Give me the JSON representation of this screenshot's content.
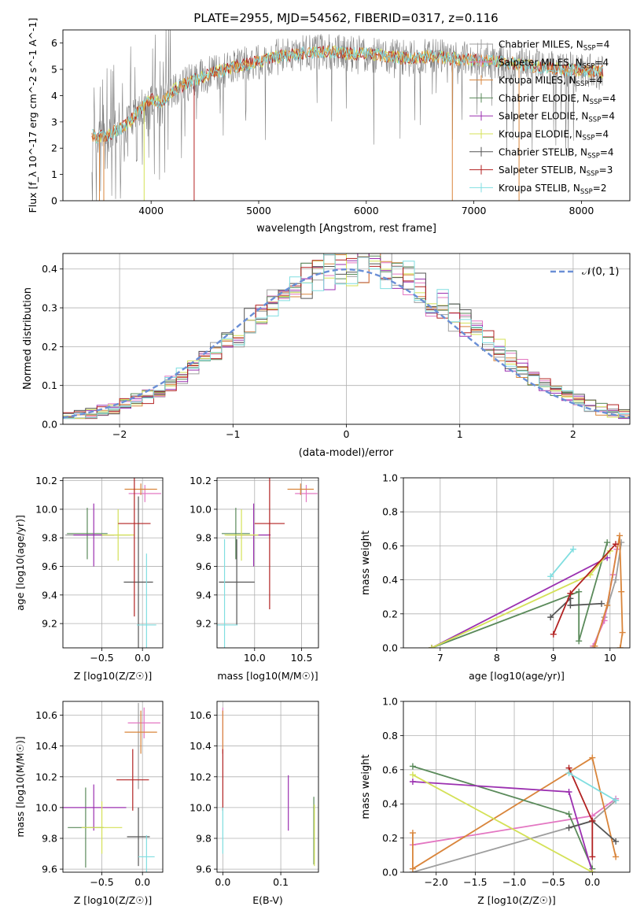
{
  "figure": {
    "title": "PLATE=2955, MJD=54562, FIBERID=0317, z=0.116"
  },
  "colors": {
    "Chabrier MILES": "#9e9e9e",
    "Salpeter MILES": "#e377c2",
    "Kroupa MILES": "#d9853b",
    "Chabrier ELODIE": "#5a8a5a",
    "Salpeter ELODIE": "#9b30b0",
    "Kroupa ELODIE": "#d4e157",
    "Chabrier STELIB": "#555555",
    "Salpeter STELIB": "#b22222",
    "Kroupa STELIB": "#80dee0",
    "normal": "#6a8fd6"
  },
  "chart_data": [
    {
      "id": "spectrum",
      "type": "line",
      "xlabel": "wavelength [Angstrom, rest frame]",
      "ylabel": "Flux [f_λ 10^-17 erg cm^-2 s^-1 A^-1]",
      "xlim": [
        3180,
        8450
      ],
      "ylim": [
        0,
        6.5
      ],
      "xticks": [
        4000,
        5000,
        6000,
        7000,
        8000
      ],
      "yticks": [
        0,
        1,
        2,
        3,
        4,
        5,
        6
      ],
      "legend_position": "upper-right",
      "data_trend": {
        "x": [
          3450,
          3500,
          3600,
          3700,
          3800,
          3900,
          4000,
          4100,
          4200,
          4400,
          4600,
          4800,
          5000,
          5200,
          5400,
          5600,
          5800,
          6000,
          6200,
          6400,
          6600,
          6800,
          7000,
          7200,
          7400,
          7600,
          7800,
          8000,
          8200
        ],
        "y": [
          2.5,
          2.4,
          2.5,
          2.7,
          3.0,
          3.5,
          3.9,
          3.7,
          4.2,
          4.6,
          4.9,
          5.1,
          5.3,
          5.5,
          5.6,
          5.7,
          5.6,
          5.6,
          5.5,
          5.4,
          5.5,
          5.4,
          5.35,
          5.3,
          5.2,
          5.1,
          5.0,
          4.95,
          4.9
        ]
      },
      "series": [
        {
          "name": "Chabrier MILES",
          "label": "Chabrier MILES, N",
          "sub": "SSP",
          "tail": "=4"
        },
        {
          "name": "Salpeter MILES",
          "label": "Salpeter MILES, N",
          "sub": "SSP",
          "tail": "=4"
        },
        {
          "name": "Kroupa MILES",
          "label": "Kroupa MILES, N",
          "sub": "SSP",
          "tail": "=4"
        },
        {
          "name": "Chabrier ELODIE",
          "label": "Chabrier ELODIE, N",
          "sub": "SSP",
          "tail": "=4"
        },
        {
          "name": "Salpeter ELODIE",
          "label": "Salpeter ELODIE, N",
          "sub": "SSP",
          "tail": "=4"
        },
        {
          "name": "Kroupa ELODIE",
          "label": "Kroupa ELODIE, N",
          "sub": "SSP",
          "tail": "=4"
        },
        {
          "name": "Chabrier STELIB",
          "label": "Chabrier STELIB, N",
          "sub": "SSP",
          "tail": "=4"
        },
        {
          "name": "Salpeter STELIB",
          "label": "Salpeter STELIB, N",
          "sub": "SSP",
          "tail": "=3"
        },
        {
          "name": "Kroupa STELIB",
          "label": "Kroupa STELIB, N",
          "sub": "SSP",
          "tail": "=2"
        }
      ]
    },
    {
      "id": "residuals",
      "type": "line",
      "xlabel": "(data-model)/error",
      "ylabel": "Normed distribution",
      "xlim": [
        -2.5,
        2.5
      ],
      "ylim": [
        0,
        0.44
      ],
      "xticks": [
        -2,
        -1,
        0,
        1,
        2
      ],
      "yticks": [
        0.0,
        0.1,
        0.2,
        0.3,
        0.4
      ],
      "legend_position": "upper-right",
      "legend": "𝒩(0, 1)",
      "curve": "normal(0,1)",
      "bin_width": 0.1,
      "histograms_approx": "9 step histograms scattered around N(0,1), slightly shifted to positive values"
    },
    {
      "id": "age_vs_Z",
      "type": "scatter",
      "xlabel": "Z [log10(Z/Z☉)]",
      "ylabel": "age  [log10(age/yr)]",
      "xlim": [
        -0.98,
        0.25
      ],
      "ylim": [
        9.03,
        10.22
      ],
      "xticks": [
        -0.5,
        0.0
      ],
      "yticks": [
        9.2,
        9.4,
        9.6,
        9.8,
        10.0,
        10.2
      ],
      "points": [
        {
          "series": "Chabrier MILES",
          "x": -0.55,
          "y": 9.82,
          "xerr": 0.4,
          "yerr": 0.0
        },
        {
          "series": "Salpeter MILES",
          "x": 0.03,
          "y": 10.11,
          "xerr": 0.2,
          "yerr": 0.06
        },
        {
          "series": "Kroupa MILES",
          "x": -0.02,
          "y": 10.14,
          "xerr": 0.2,
          "yerr": 0.04
        },
        {
          "series": "Chabrier ELODIE",
          "x": -0.68,
          "y": 9.83,
          "xerr": 0.25,
          "yerr": 0.18
        },
        {
          "series": "Salpeter ELODIE",
          "x": -0.6,
          "y": 9.82,
          "xerr": 0.25,
          "yerr": 0.22
        },
        {
          "series": "Kroupa ELODIE",
          "x": -0.3,
          "y": 9.82,
          "xerr": 0.2,
          "yerr": 0.18
        },
        {
          "series": "Chabrier STELIB",
          "x": -0.05,
          "y": 9.49,
          "xerr": 0.18,
          "yerr": 0.6
        },
        {
          "series": "Salpeter STELIB",
          "x": -0.1,
          "y": 9.9,
          "xerr": 0.2,
          "yerr": 0.65
        },
        {
          "series": "Kroupa STELIB",
          "x": 0.05,
          "y": 9.19,
          "xerr": 0.12,
          "yerr": 0.5
        }
      ]
    },
    {
      "id": "age_vs_mass",
      "type": "scatter",
      "xlabel": "mass [log10(M/M☉)]",
      "ylabel": "",
      "xlim": [
        9.6,
        10.68
      ],
      "ylim": [
        9.03,
        10.22
      ],
      "xticks": [
        10.0,
        10.5
      ],
      "yticks": [
        9.2,
        9.4,
        9.6,
        9.8,
        10.0,
        10.2
      ],
      "points": [
        {
          "series": "Chabrier MILES",
          "x": 9.92,
          "y": 9.82,
          "xerr": 0.22,
          "yerr": 0.0
        },
        {
          "series": "Salpeter MILES",
          "x": 10.55,
          "y": 10.11,
          "xerr": 0.12,
          "yerr": 0.06
        },
        {
          "series": "Kroupa MILES",
          "x": 10.49,
          "y": 10.14,
          "xerr": 0.14,
          "yerr": 0.04
        },
        {
          "series": "Chabrier ELODIE",
          "x": 9.8,
          "y": 9.83,
          "xerr": 0.15,
          "yerr": 0.18
        },
        {
          "series": "Salpeter ELODIE",
          "x": 9.99,
          "y": 9.82,
          "xerr": 0.18,
          "yerr": 0.22
        },
        {
          "series": "Kroupa ELODIE",
          "x": 9.86,
          "y": 9.82,
          "xerr": 0.18,
          "yerr": 0.18
        },
        {
          "series": "Chabrier STELIB",
          "x": 9.81,
          "y": 9.49,
          "xerr": 0.19,
          "yerr": 0.3
        },
        {
          "series": "Salpeter STELIB",
          "x": 10.16,
          "y": 9.9,
          "xerr": 0.16,
          "yerr": 0.6
        },
        {
          "series": "Kroupa STELIB",
          "x": 9.68,
          "y": 9.19,
          "xerr": 0.14,
          "yerr": 0.6
        }
      ]
    },
    {
      "id": "mass_weight_vs_age",
      "type": "line",
      "xlabel": "age  [log10(age/yr)]",
      "ylabel": "mass weight",
      "xlim": [
        6.35,
        10.35
      ],
      "ylim": [
        0,
        1.0
      ],
      "xticks": [
        7,
        8,
        9,
        10
      ],
      "yticks": [
        0.0,
        0.2,
        0.4,
        0.6,
        0.8,
        1.0
      ],
      "series": [
        {
          "name": "Chabrier MILES",
          "x": [
            9.7,
            9.9,
            10.1,
            10.2
          ],
          "y": [
            0.0,
            0.18,
            0.4,
            0.62
          ]
        },
        {
          "name": "Salpeter MILES",
          "x": [
            9.7,
            9.9,
            10.05,
            10.12
          ],
          "y": [
            0.01,
            0.16,
            0.43,
            0.58
          ]
        },
        {
          "name": "Kroupa MILES",
          "x": [
            9.73,
            9.95,
            10.17,
            10.2,
            10.22,
            10.18
          ],
          "y": [
            0.01,
            0.25,
            0.66,
            0.33,
            0.09,
            0.0
          ]
        },
        {
          "name": "Chabrier ELODIE",
          "x": [
            6.85,
            9.45,
            9.45,
            9.95
          ],
          "y": [
            0.0,
            0.33,
            0.04,
            0.62
          ]
        },
        {
          "name": "Salpeter ELODIE",
          "x": [
            6.85,
            9.95
          ],
          "y": [
            0.0,
            0.53
          ]
        },
        {
          "name": "Kroupa ELODIE",
          "x": [
            6.85,
            9.65,
            10.0
          ],
          "y": [
            0.0,
            0.43,
            0.57
          ]
        },
        {
          "name": "Chabrier STELIB",
          "x": [
            8.95,
            9.3,
            9.3,
            9.85
          ],
          "y": [
            0.18,
            0.29,
            0.25,
            0.26
          ]
        },
        {
          "name": "Salpeter STELIB",
          "x": [
            9.0,
            9.3,
            10.1
          ],
          "y": [
            0.08,
            0.32,
            0.61
          ]
        },
        {
          "name": "Kroupa STELIB",
          "x": [
            8.95,
            9.35
          ],
          "y": [
            0.42,
            0.58
          ]
        }
      ]
    },
    {
      "id": "mass_vs_Z",
      "type": "scatter",
      "xlabel": "Z [log10(Z/Z☉)]",
      "ylabel": "mass [log10(M/M☉)]",
      "xlim": [
        -0.98,
        0.25
      ],
      "ylim": [
        9.58,
        10.69
      ],
      "xticks": [
        -0.5,
        0.0
      ],
      "yticks": [
        9.6,
        9.8,
        10.0,
        10.2,
        10.4,
        10.6
      ],
      "points": [
        {
          "series": "Chabrier MILES",
          "x": -0.05,
          "y": 10.4,
          "xerr": 0.0,
          "yerr": 0.28
        },
        {
          "series": "Salpeter MILES",
          "x": 0.02,
          "y": 10.55,
          "xerr": 0.2,
          "yerr": 0.1
        },
        {
          "series": "Kroupa MILES",
          "x": -0.02,
          "y": 10.49,
          "xerr": 0.2,
          "yerr": 0.14
        },
        {
          "series": "Chabrier ELODIE",
          "x": -0.7,
          "y": 9.87,
          "xerr": 0.22,
          "yerr": 0.26
        },
        {
          "series": "Salpeter ELODIE",
          "x": -0.6,
          "y": 10.0,
          "xerr": 0.4,
          "yerr": 0.15
        },
        {
          "series": "Kroupa ELODIE",
          "x": -0.5,
          "y": 9.87,
          "xerr": 0.25,
          "yerr": 0.17
        },
        {
          "series": "Chabrier STELIB",
          "x": -0.05,
          "y": 9.81,
          "xerr": 0.14,
          "yerr": 0.19
        },
        {
          "series": "Salpeter STELIB",
          "x": -0.12,
          "y": 10.18,
          "xerr": 0.2,
          "yerr": 0.2
        },
        {
          "series": "Kroupa STELIB",
          "x": 0.05,
          "y": 9.68,
          "xerr": 0.1,
          "yerr": 0.14
        }
      ]
    },
    {
      "id": "mass_vs_ebv",
      "type": "scatter",
      "xlabel": "E(B-V)",
      "ylabel": "",
      "xlim": [
        -0.01,
        0.165
      ],
      "ylim": [
        9.58,
        10.69
      ],
      "xticks": [
        0.0,
        0.1
      ],
      "yticks": [
        9.6,
        9.8,
        10.0,
        10.2,
        10.4,
        10.6
      ],
      "points": [
        {
          "series": "Salpeter MILES",
          "x": 0.0,
          "y": 10.5,
          "xerr": 0.0,
          "yerr": 0.15
        },
        {
          "series": "Kroupa MILES",
          "x": 0.0,
          "y": 10.49,
          "xerr": 0.0,
          "yerr": 0.14
        },
        {
          "series": "Salpeter STELIB",
          "x": 0.0,
          "y": 10.18,
          "xerr": 0.0,
          "yerr": 0.2
        },
        {
          "series": "Kroupa STELIB",
          "x": 0.0,
          "y": 9.85,
          "xerr": 0.0,
          "yerr": 0.15
        },
        {
          "series": "Salpeter ELODIE",
          "x": 0.113,
          "y": 10.03,
          "xerr": 0.0,
          "yerr": 0.18
        },
        {
          "series": "Chabrier ELODIE",
          "x": 0.157,
          "y": 9.85,
          "xerr": 0.0,
          "yerr": 0.22
        },
        {
          "series": "Kroupa ELODIE",
          "x": 0.158,
          "y": 9.82,
          "xerr": 0.0,
          "yerr": 0.2
        }
      ]
    },
    {
      "id": "mass_weight_vs_Z",
      "type": "line",
      "xlabel": "Z [log10(Z/Z☉)]",
      "ylabel": "mass weight",
      "xlim": [
        -2.42,
        0.48
      ],
      "ylim": [
        0,
        1.0
      ],
      "xticks": [
        -2.0,
        -1.5,
        -1.0,
        -0.5,
        0.0
      ],
      "yticks": [
        0.0,
        0.2,
        0.4,
        0.6,
        0.8,
        1.0
      ],
      "series": [
        {
          "name": "Chabrier MILES",
          "x": [
            -2.3,
            0.0,
            0.3
          ],
          "y": [
            0.0,
            0.3,
            0.42
          ]
        },
        {
          "name": "Salpeter MILES",
          "x": [
            -2.3,
            0.0,
            0.3
          ],
          "y": [
            0.16,
            0.33,
            0.43
          ]
        },
        {
          "name": "Kroupa MILES",
          "x": [
            -2.3,
            -2.3,
            0.0,
            0.3
          ],
          "y": [
            0.23,
            0.02,
            0.67,
            0.09
          ]
        },
        {
          "name": "Chabrier ELODIE",
          "x": [
            -2.3,
            -0.3,
            0.0
          ],
          "y": [
            0.62,
            0.34,
            0.02
          ]
        },
        {
          "name": "Salpeter ELODIE",
          "x": [
            -2.3,
            -0.3,
            0.0
          ],
          "y": [
            0.53,
            0.47,
            0.0
          ]
        },
        {
          "name": "Kroupa ELODIE",
          "x": [
            -2.3,
            0.0
          ],
          "y": [
            0.57,
            0.0
          ]
        },
        {
          "name": "Chabrier STELIB",
          "x": [
            -0.3,
            0.0,
            0.3
          ],
          "y": [
            0.26,
            0.3,
            0.18
          ]
        },
        {
          "name": "Salpeter STELIB",
          "x": [
            -0.3,
            0.0,
            0.0
          ],
          "y": [
            0.61,
            0.3,
            0.09
          ]
        },
        {
          "name": "Kroupa STELIB",
          "x": [
            -0.3,
            0.3
          ],
          "y": [
            0.58,
            0.42
          ]
        }
      ]
    }
  ]
}
